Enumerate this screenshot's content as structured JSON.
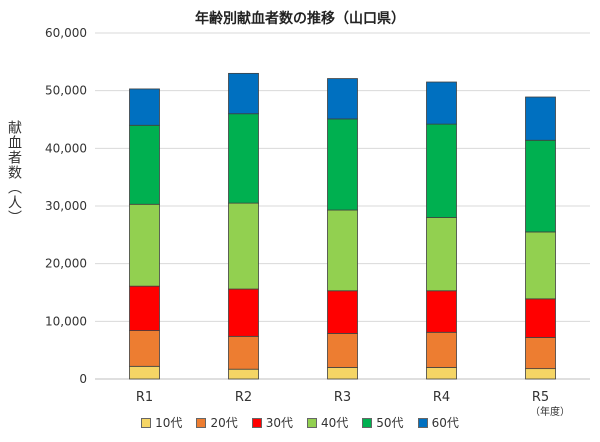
{
  "chart_data": {
    "type": "bar",
    "stacked": true,
    "title": "年齢別献血者数の推移（山口県）",
    "ylabel": "献血者数（人）",
    "xunit": "（年度）",
    "ylim": [
      0,
      60000
    ],
    "yticks": [
      "0",
      "10,000",
      "20,000",
      "30,000",
      "40,000",
      "50,000",
      "60,000"
    ],
    "ytick_values": [
      0,
      10000,
      20000,
      30000,
      40000,
      50000,
      60000
    ],
    "categories": [
      "R1",
      "R2",
      "R3",
      "R4",
      "R5"
    ],
    "series": [
      {
        "name": "10代",
        "color": "#F5D565",
        "values": [
          2200,
          1700,
          2000,
          2000,
          1800
        ]
      },
      {
        "name": "20代",
        "color": "#ED7D31",
        "values": [
          6200,
          5700,
          5900,
          6100,
          5400
        ]
      },
      {
        "name": "30代",
        "color": "#FF0000",
        "values": [
          7700,
          8200,
          7400,
          7200,
          6700
        ]
      },
      {
        "name": "40代",
        "color": "#92D050",
        "values": [
          14200,
          14900,
          14000,
          12700,
          11600
        ]
      },
      {
        "name": "50代",
        "color": "#00B050",
        "values": [
          13700,
          15500,
          15800,
          16200,
          15900
        ]
      },
      {
        "name": "60代",
        "color": "#0070C0",
        "values": [
          6300,
          7000,
          7000,
          7300,
          7500
        ]
      }
    ],
    "grid": true,
    "legend": "bottom"
  }
}
